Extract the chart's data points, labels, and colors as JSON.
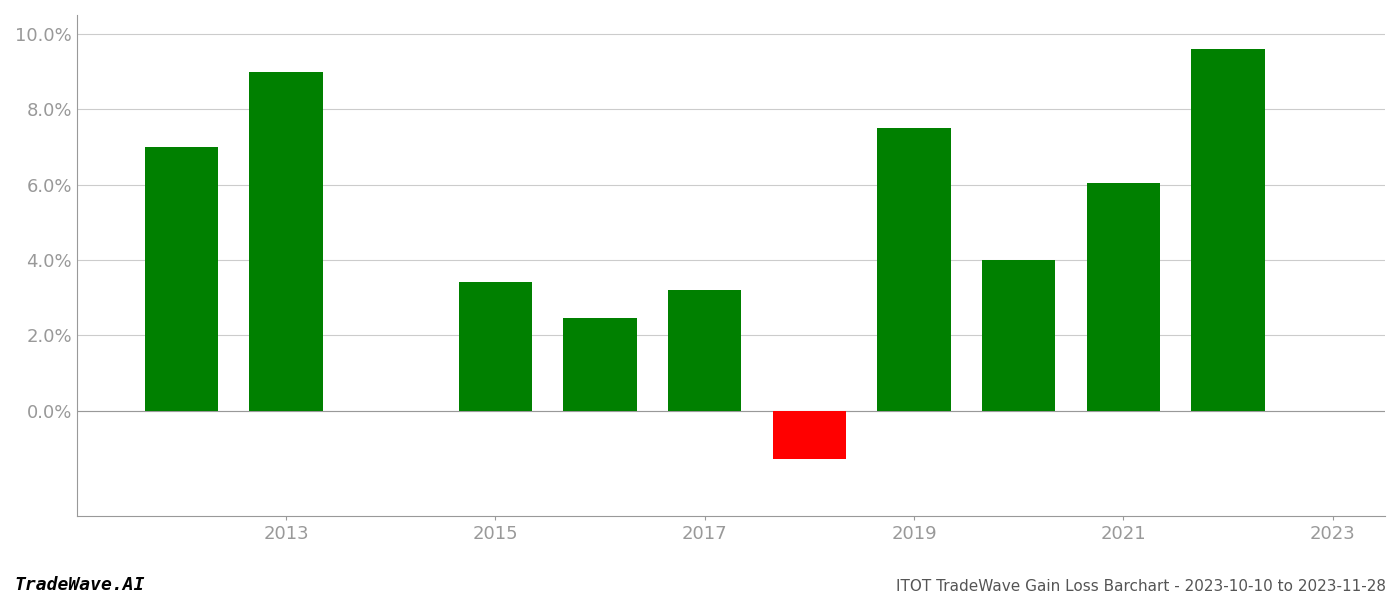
{
  "years": [
    2012,
    2013,
    2015,
    2016,
    2017,
    2018,
    2019,
    2020,
    2021,
    2022
  ],
  "values": [
    0.07,
    0.09,
    0.034,
    0.0245,
    0.032,
    -0.013,
    0.075,
    0.04,
    0.0605,
    0.096
  ],
  "colors": [
    "#008000",
    "#008000",
    "#008000",
    "#008000",
    "#008000",
    "#ff0000",
    "#008000",
    "#008000",
    "#008000",
    "#008000"
  ],
  "xlim": [
    2011.0,
    2023.5
  ],
  "ylim": [
    -0.028,
    0.105
  ],
  "yticks": [
    0.0,
    0.02,
    0.04,
    0.06,
    0.08,
    0.1
  ],
  "xticks": [
    2013,
    2015,
    2017,
    2019,
    2021,
    2023
  ],
  "bar_width": 0.7,
  "title": "ITOT TradeWave Gain Loss Barchart - 2023-10-10 to 2023-11-28",
  "watermark": "TradeWave.AI",
  "bg_color": "#ffffff",
  "grid_color": "#cccccc",
  "tick_color": "#999999",
  "figsize": [
    14.0,
    6.0
  ],
  "dpi": 100
}
